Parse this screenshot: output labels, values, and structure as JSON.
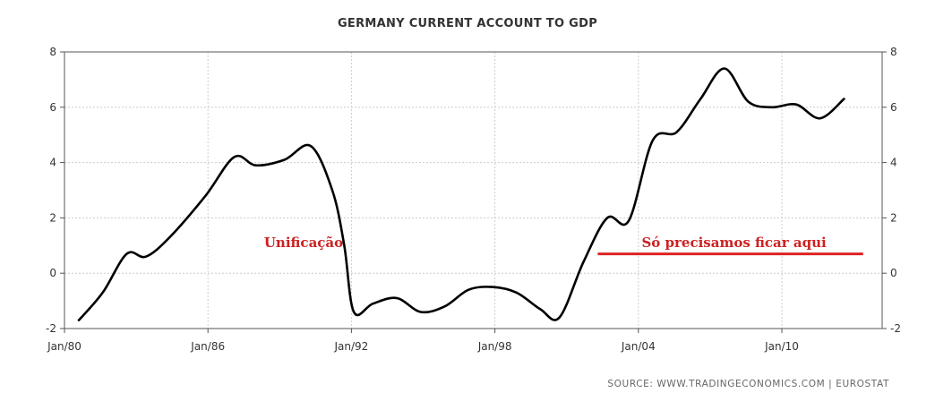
{
  "chart_data": {
    "type": "line",
    "title": "GERMANY CURRENT ACCOUNT TO GDP",
    "xlabel": "",
    "ylabel": "",
    "x_ticks": [
      "Jan/80",
      "Jan/86",
      "Jan/92",
      "Jan/98",
      "Jan/04",
      "Jan/10"
    ],
    "y_ticks": [
      "-2",
      "0",
      "2",
      "4",
      "6",
      "8"
    ],
    "xlim": [
      1980,
      2013
    ],
    "ylim": [
      -2,
      8
    ],
    "grid": true,
    "line_color": "#000000",
    "series": [
      {
        "points": [
          [
            1980.6,
            -1.7
          ],
          [
            1981.6,
            -0.7
          ],
          [
            1982.6,
            0.7
          ],
          [
            1983.4,
            0.6
          ],
          [
            1984.4,
            1.3
          ],
          [
            1985.9,
            2.8
          ],
          [
            1987.1,
            4.2
          ],
          [
            1988.0,
            3.9
          ],
          [
            1989.2,
            4.1
          ],
          [
            1990.3,
            4.6
          ],
          [
            1991.2,
            3.0
          ],
          [
            1991.7,
            1.0
          ],
          [
            1992.1,
            -1.4
          ],
          [
            1992.9,
            -1.1
          ],
          [
            1993.9,
            -0.9
          ],
          [
            1994.9,
            -1.4
          ],
          [
            1995.9,
            -1.2
          ],
          [
            1996.9,
            -0.6
          ],
          [
            1997.9,
            -0.5
          ],
          [
            1998.9,
            -0.7
          ],
          [
            1999.9,
            -1.3
          ],
          [
            2000.7,
            -1.6
          ],
          [
            2001.7,
            0.4
          ],
          [
            2002.7,
            2.0
          ],
          [
            2003.6,
            1.9
          ],
          [
            2004.6,
            4.8
          ],
          [
            2005.6,
            5.1
          ],
          [
            2006.6,
            6.3
          ],
          [
            2007.6,
            7.4
          ],
          [
            2008.6,
            6.2
          ],
          [
            2009.6,
            6.0
          ],
          [
            2010.6,
            6.1
          ],
          [
            2011.6,
            5.6
          ],
          [
            2012.6,
            6.3
          ]
        ]
      }
    ],
    "annotations": [
      {
        "text": "Unificação",
        "x": 1990.0,
        "y": 1.1,
        "color": "#cc2222"
      },
      {
        "text": "Só precisamos ficar aqui",
        "x": 2008.0,
        "y": 1.1,
        "color": "#cc2222"
      }
    ],
    "reference_line": {
      "y": 0.7,
      "x_start": 2002.3,
      "x_end": 2013.4,
      "color": "#dd2222"
    },
    "source": "SOURCE:  WWW.TRADINGECONOMICS.COM  |  EUROSTAT"
  }
}
